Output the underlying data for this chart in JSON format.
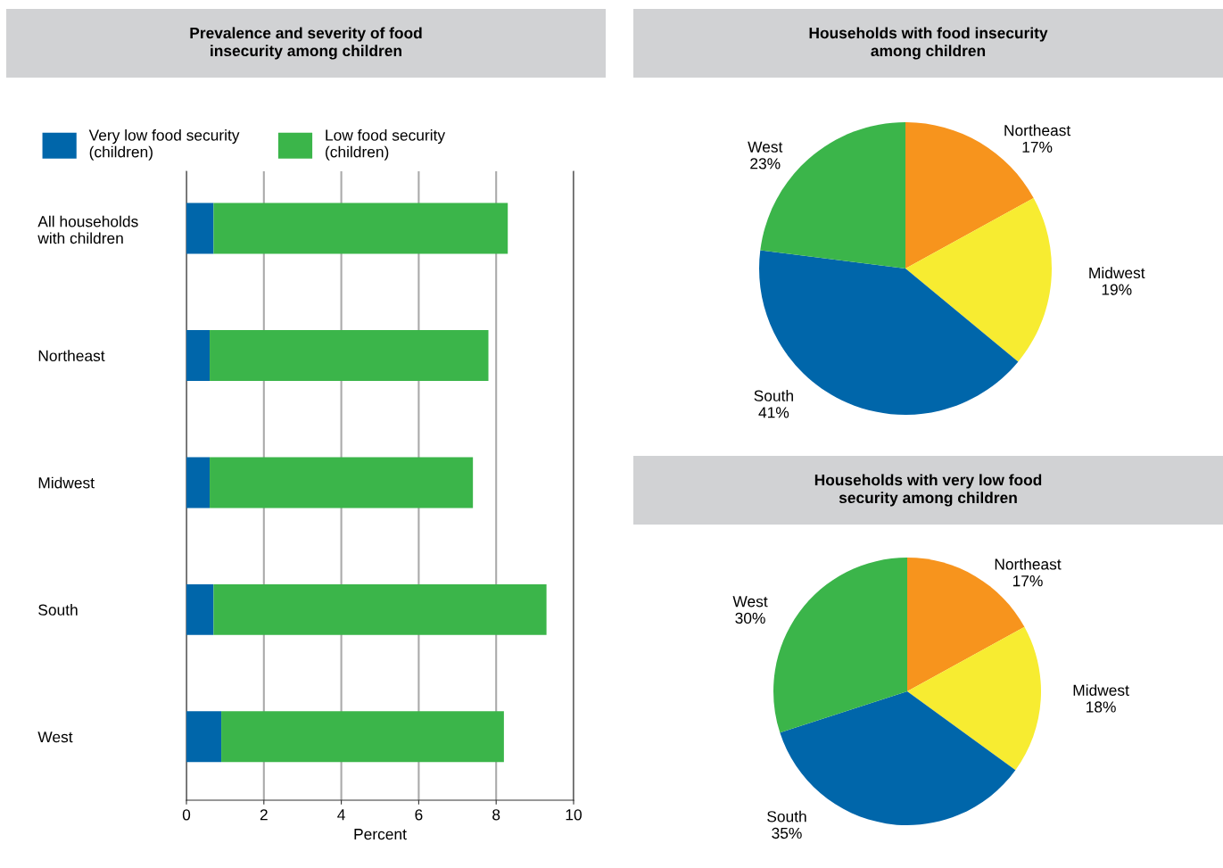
{
  "chart_data": [
    {
      "type": "bar",
      "title": "Prevalence and severity of food\ninsecurity among children",
      "orientation": "horizontal",
      "stacked": true,
      "categories": [
        "All households\nwith children",
        "Northeast",
        "Midwest",
        "South",
        "West"
      ],
      "series": [
        {
          "name": "Very low food security\n(children)",
          "color": "#0066aa",
          "values": [
            0.7,
            0.6,
            0.6,
            0.7,
            0.9
          ]
        },
        {
          "name": "Low food security\n(children)",
          "color": "#3bb54a",
          "values": [
            7.6,
            7.2,
            6.8,
            8.6,
            7.3
          ]
        }
      ],
      "xlim": [
        0,
        10
      ],
      "xticks": [
        0,
        2,
        4,
        6,
        8,
        10
      ],
      "xlabel": "Percent",
      "grid": "x",
      "legend": "top"
    },
    {
      "type": "pie",
      "title": "Households with food insecurity\namong children",
      "categories": [
        "Northeast",
        "Midwest",
        "South",
        "West"
      ],
      "values": [
        17,
        19,
        41,
        23
      ],
      "value_labels": [
        "17%",
        "19%",
        "41%",
        "23%"
      ],
      "colors": [
        "#f7941d",
        "#f7ec31",
        "#0066aa",
        "#3bb54a"
      ]
    },
    {
      "type": "pie",
      "title": "Households with very low food\nsecurity among children",
      "categories": [
        "Northeast",
        "Midwest",
        "South",
        "West"
      ],
      "values": [
        17,
        18,
        35,
        30
      ],
      "value_labels": [
        "17%",
        "18%",
        "35%",
        "30%"
      ],
      "colors": [
        "#f7941d",
        "#f7ec31",
        "#0066aa",
        "#3bb54a"
      ]
    }
  ]
}
